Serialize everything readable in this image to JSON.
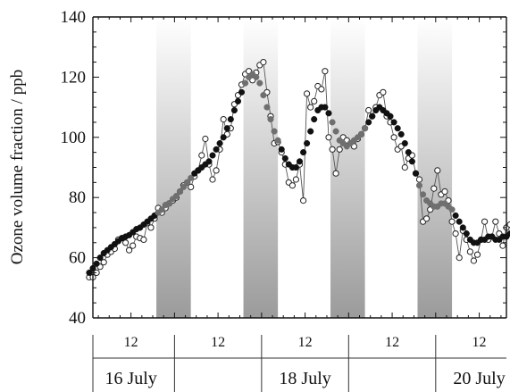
{
  "chart_data": {
    "type": "line",
    "title": "",
    "ylabel": "Ozone volume fraction / ppb",
    "xlabel": "",
    "ylim": [
      40,
      140
    ],
    "xlim": [
      0,
      120
    ],
    "x_units": "hours from 16 July 00:00",
    "y_ticks": [
      "40",
      "60",
      "80",
      "100",
      "120",
      "140"
    ],
    "hour_ticks": [
      {
        "x": 12,
        "label": "12"
      },
      {
        "x": 36,
        "label": "12"
      },
      {
        "x": 60,
        "label": "12"
      },
      {
        "x": 84,
        "label": "12"
      },
      {
        "x": 108,
        "label": "12"
      }
    ],
    "day_separators": [
      24,
      48,
      72,
      96
    ],
    "day_labels": [
      {
        "x": 12,
        "label": "16 July"
      },
      {
        "x": 60,
        "label": "18 July"
      },
      {
        "x": 108,
        "label": "20 July"
      }
    ],
    "night_shading": [
      [
        19,
        28.5
      ],
      [
        43,
        52.5
      ],
      [
        67,
        76.5
      ],
      [
        91,
        100.5
      ]
    ],
    "grid": false,
    "series": [
      {
        "style": "open",
        "points": [
          [
            0.5,
            53.5
          ],
          [
            1.5,
            53.5
          ],
          [
            2.5,
            55
          ],
          [
            3.5,
            57
          ],
          [
            4.5,
            58.5
          ],
          [
            5.5,
            61
          ],
          [
            6.5,
            62
          ],
          [
            7.5,
            63
          ],
          [
            8.5,
            66
          ],
          [
            9.5,
            66.5
          ],
          [
            10.5,
            65
          ],
          [
            11.5,
            62.5
          ],
          [
            12.5,
            64
          ],
          [
            13.5,
            67
          ],
          [
            14.5,
            66.5
          ],
          [
            15.5,
            66
          ],
          [
            16.5,
            71.5
          ],
          [
            17.5,
            70
          ],
          [
            18.5,
            73
          ],
          [
            19.5,
            76.5
          ],
          [
            20.5,
            75
          ],
          [
            21.5,
            76.5
          ],
          [
            22.5,
            78
          ],
          [
            23.5,
            79
          ],
          [
            24.5,
            80
          ],
          [
            25.5,
            82
          ],
          [
            26.5,
            84
          ],
          [
            27.5,
            85
          ],
          [
            28.5,
            83.5
          ],
          [
            29.5,
            87
          ],
          [
            30.5,
            89
          ],
          [
            31.5,
            94
          ],
          [
            32.5,
            99.5
          ],
          [
            33.5,
            91
          ],
          [
            34.5,
            86
          ],
          [
            35.5,
            89
          ],
          [
            36.5,
            96
          ],
          [
            37.5,
            106
          ],
          [
            38.5,
            101
          ],
          [
            39.5,
            103
          ],
          [
            40.5,
            111
          ],
          [
            41.5,
            114
          ],
          [
            42.5,
            117.5
          ],
          [
            43.5,
            121
          ],
          [
            44.5,
            122
          ],
          [
            45.5,
            119
          ],
          [
            46.5,
            121.5
          ],
          [
            47.5,
            124
          ],
          [
            48.5,
            125
          ],
          [
            49.5,
            115
          ],
          [
            50.5,
            107
          ],
          [
            51.5,
            98
          ],
          [
            52.5,
            98.5
          ],
          [
            53.5,
            95
          ],
          [
            54.5,
            91
          ],
          [
            55.5,
            85
          ],
          [
            56.5,
            84
          ],
          [
            57.5,
            86
          ],
          [
            58.5,
            91
          ],
          [
            59.5,
            79
          ],
          [
            60.5,
            114.5
          ],
          [
            61.5,
            110
          ],
          [
            62.5,
            112
          ],
          [
            63.5,
            117
          ],
          [
            64.5,
            116
          ],
          [
            65.5,
            122
          ],
          [
            66.5,
            100
          ],
          [
            67.5,
            96
          ],
          [
            68.5,
            88
          ],
          [
            69.5,
            96
          ],
          [
            70.5,
            100
          ],
          [
            71.5,
            99
          ],
          [
            72.5,
            98
          ],
          [
            73.5,
            97
          ],
          [
            74.5,
            99.5
          ],
          [
            75.5,
            101
          ],
          [
            76.5,
            103
          ],
          [
            77.5,
            109
          ],
          [
            78.5,
            107
          ],
          [
            79.5,
            110
          ],
          [
            80.5,
            114
          ],
          [
            81.5,
            115
          ],
          [
            82.5,
            107
          ],
          [
            83.5,
            105
          ],
          [
            84.5,
            100
          ],
          [
            85.5,
            96
          ],
          [
            86.5,
            97
          ],
          [
            87.5,
            90
          ],
          [
            88.5,
            93
          ],
          [
            89.5,
            94
          ],
          [
            90.5,
            88
          ],
          [
            91.5,
            86
          ],
          [
            92.5,
            72
          ],
          [
            93.5,
            73
          ],
          [
            94.5,
            76
          ],
          [
            95.5,
            83
          ],
          [
            96.5,
            89
          ],
          [
            97.5,
            81
          ],
          [
            98.5,
            82
          ],
          [
            99.5,
            79
          ],
          [
            100.5,
            72
          ],
          [
            101.5,
            68
          ],
          [
            102.5,
            60
          ],
          [
            103.5,
            69
          ],
          [
            104.5,
            66
          ],
          [
            105.5,
            62
          ],
          [
            106.5,
            59
          ],
          [
            107.5,
            61
          ],
          [
            108.5,
            66
          ],
          [
            109.5,
            72
          ],
          [
            110.5,
            66
          ],
          [
            111.5,
            67
          ],
          [
            112.5,
            72
          ],
          [
            113.5,
            68
          ],
          [
            114.5,
            64
          ],
          [
            115.5,
            70
          ],
          [
            116.5,
            71
          ],
          [
            117.5,
            72
          ]
        ]
      },
      {
        "style": "filled",
        "points": [
          [
            0.5,
            55
          ],
          [
            1.5,
            56.5
          ],
          [
            2.5,
            58
          ],
          [
            3.5,
            60
          ],
          [
            4.5,
            61.5
          ],
          [
            5.5,
            62.5
          ],
          [
            6.5,
            63.5
          ],
          [
            7.5,
            64.5
          ],
          [
            8.5,
            65.5
          ],
          [
            9.5,
            66.5
          ],
          [
            10.5,
            67
          ],
          [
            11.5,
            67.5
          ],
          [
            12.5,
            68.5
          ],
          [
            13.5,
            69.5
          ],
          [
            14.5,
            70
          ],
          [
            15.5,
            71
          ],
          [
            16.5,
            72
          ],
          [
            17.5,
            73
          ],
          [
            18.5,
            74
          ],
          [
            19.5,
            75
          ],
          [
            20.5,
            76
          ],
          [
            21.5,
            77.5
          ],
          [
            22.5,
            78
          ],
          [
            23.5,
            79.5
          ],
          [
            24.5,
            80.5
          ],
          [
            25.5,
            82
          ],
          [
            26.5,
            83.5
          ],
          [
            27.5,
            85
          ],
          [
            28.5,
            86.5
          ],
          [
            29.5,
            88
          ],
          [
            30.5,
            89
          ],
          [
            31.5,
            90
          ],
          [
            32.5,
            91
          ],
          [
            33.5,
            92
          ],
          [
            34.5,
            94
          ],
          [
            35.5,
            96
          ],
          [
            36.5,
            98
          ],
          [
            37.5,
            100
          ],
          [
            38.5,
            103
          ],
          [
            39.5,
            106
          ],
          [
            40.5,
            109
          ],
          [
            41.5,
            112
          ],
          [
            42.5,
            115
          ],
          [
            43.5,
            118
          ],
          [
            44.5,
            120
          ],
          [
            45.5,
            121
          ],
          [
            46.5,
            120
          ],
          [
            47.5,
            118
          ],
          [
            48.5,
            114
          ],
          [
            49.5,
            110
          ],
          [
            50.5,
            106
          ],
          [
            51.5,
            102
          ],
          [
            52.5,
            99
          ],
          [
            53.5,
            96
          ],
          [
            54.5,
            93
          ],
          [
            55.5,
            91
          ],
          [
            56.5,
            90
          ],
          [
            57.5,
            90
          ],
          [
            58.5,
            92
          ],
          [
            59.5,
            95
          ],
          [
            60.5,
            98
          ],
          [
            61.5,
            102
          ],
          [
            62.5,
            106
          ],
          [
            63.5,
            109
          ],
          [
            64.5,
            110
          ],
          [
            65.5,
            110
          ],
          [
            66.5,
            108
          ],
          [
            67.5,
            105
          ],
          [
            68.5,
            102
          ],
          [
            69.5,
            99
          ],
          [
            70.5,
            98
          ],
          [
            71.5,
            97
          ],
          [
            72.5,
            98
          ],
          [
            73.5,
            99
          ],
          [
            74.5,
            100
          ],
          [
            75.5,
            101
          ],
          [
            76.5,
            103
          ],
          [
            77.5,
            105
          ],
          [
            78.5,
            107
          ],
          [
            79.5,
            109
          ],
          [
            80.5,
            110
          ],
          [
            81.5,
            109
          ],
          [
            82.5,
            108
          ],
          [
            83.5,
            107
          ],
          [
            84.5,
            105
          ],
          [
            85.5,
            103
          ],
          [
            86.5,
            101
          ],
          [
            87.5,
            98
          ],
          [
            88.5,
            95
          ],
          [
            89.5,
            92
          ],
          [
            90.5,
            88
          ],
          [
            91.5,
            84
          ],
          [
            92.5,
            81
          ],
          [
            93.5,
            79
          ],
          [
            94.5,
            78
          ],
          [
            95.5,
            77
          ],
          [
            96.5,
            77
          ],
          [
            97.5,
            78
          ],
          [
            98.5,
            78
          ],
          [
            99.5,
            77
          ],
          [
            100.5,
            76
          ],
          [
            101.5,
            74
          ],
          [
            102.5,
            72
          ],
          [
            103.5,
            70
          ],
          [
            104.5,
            68
          ],
          [
            105.5,
            66
          ],
          [
            106.5,
            65
          ],
          [
            107.5,
            65
          ],
          [
            108.5,
            66
          ],
          [
            109.5,
            66
          ],
          [
            110.5,
            67
          ],
          [
            111.5,
            67
          ],
          [
            112.5,
            66
          ],
          [
            113.5,
            66
          ],
          [
            114.5,
            67
          ],
          [
            115.5,
            67
          ],
          [
            116.5,
            68
          ],
          [
            117.5,
            69
          ]
        ]
      }
    ]
  }
}
